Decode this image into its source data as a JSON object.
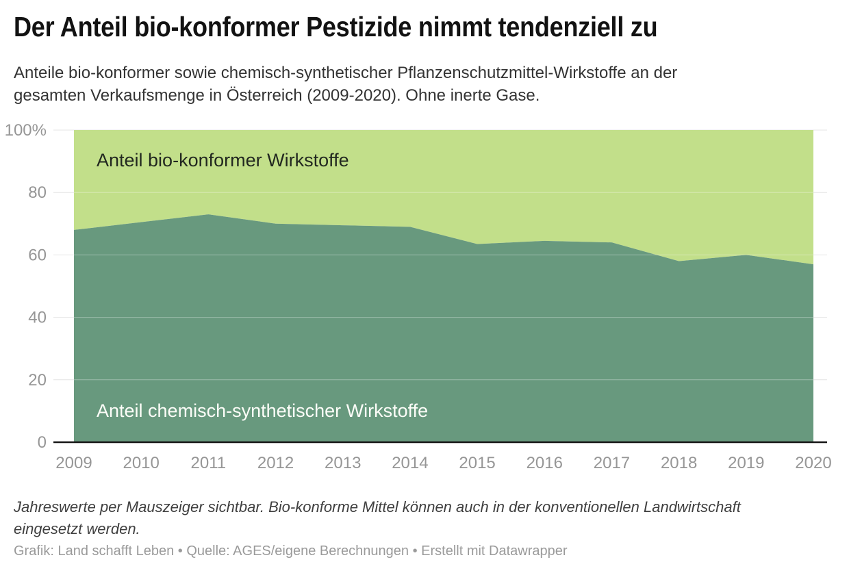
{
  "header": {
    "title": "Der Anteil bio-konformer Pestizide nimmt tendenziell zu",
    "subtitle": "Anteile bio-konformer sowie chemisch-synthetischer Pflanzenschutzmittel-Wirkstoffe an der\ngesamten Verkaufsmenge in Österreich (2009-2020). Ohne inerte Gase."
  },
  "chart_data": {
    "type": "area",
    "stacking": "percent",
    "title": "Der Anteil bio-konformer Pestizide nimmt tendenziell zu",
    "x": [
      2009,
      2010,
      2011,
      2012,
      2013,
      2014,
      2015,
      2016,
      2017,
      2018,
      2019,
      2020
    ],
    "series": [
      {
        "name": "Anteil bio-konformer Wirkstoffe",
        "color": "#c2df8a",
        "values": [
          32,
          29.5,
          27,
          30,
          30.5,
          31,
          36.5,
          35.5,
          36,
          42,
          40,
          43
        ]
      },
      {
        "name": "Anteil chemisch-synthetischer Wirkstoffe",
        "color": "#68997e",
        "values": [
          68,
          70.5,
          73,
          70,
          69.5,
          69,
          63.5,
          64.5,
          64,
          58,
          60,
          57
        ]
      }
    ],
    "ylim": [
      0,
      100
    ],
    "yticks": [
      "100%",
      "80",
      "60",
      "40",
      "20",
      "0"
    ],
    "grid": "horizontal",
    "legend": "labels-inside-areas",
    "axis_text_color": "#969696",
    "gridline_color": "#e4e4e4",
    "baseline_color": "#161616"
  },
  "footer": {
    "footnote": "Jahreswerte per Mauszeiger sichtbar. Bio-konforme Mittel können auch in der konventionellen Landwirtschaft\neingesetzt werden.",
    "credits": "Grafik: Land schafft Leben • Quelle: AGES/eigene Berechnungen • Erstellt mit Datawrapper"
  }
}
